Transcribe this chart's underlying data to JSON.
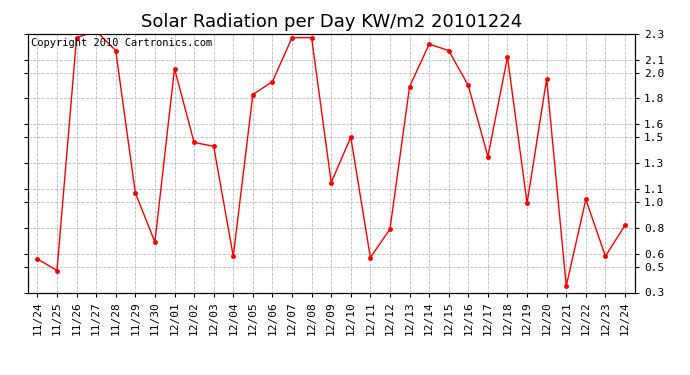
{
  "title": "Solar Radiation per Day KW/m2 20101224",
  "copyright_text": "Copyright 2010 Cartronics.com",
  "dates": [
    "11/24",
    "11/25",
    "11/26",
    "11/27",
    "11/28",
    "11/29",
    "11/30",
    "12/01",
    "12/02",
    "12/03",
    "12/04",
    "12/05",
    "12/06",
    "12/07",
    "12/08",
    "12/09",
    "12/10",
    "12/11",
    "12/12",
    "12/13",
    "12/14",
    "12/15",
    "12/16",
    "12/17",
    "12/18",
    "12/19",
    "12/20",
    "12/21",
    "12/22",
    "12/23",
    "12/24"
  ],
  "values": [
    0.56,
    0.47,
    2.27,
    2.32,
    2.17,
    1.07,
    0.69,
    2.03,
    1.46,
    1.43,
    0.58,
    1.83,
    1.93,
    2.27,
    2.27,
    1.15,
    1.5,
    0.57,
    0.79,
    1.89,
    2.22,
    2.17,
    1.9,
    1.35,
    2.12,
    0.99,
    1.95,
    0.35,
    1.02,
    0.58,
    0.82
  ],
  "line_color": "#ff0000",
  "marker": "o",
  "marker_size": 3,
  "ylim": [
    0.3,
    2.3
  ],
  "yticks_right": [
    2.3,
    2.1,
    2.0,
    1.8,
    1.6,
    1.5,
    1.3,
    1.1,
    1.0,
    0.8,
    0.6,
    0.5,
    0.3
  ],
  "ytick_labels_right": [
    "2.3",
    "2.1",
    "2.0",
    "1.8",
    "1.6",
    "1.5",
    "1.3",
    "1.1",
    "1.0",
    "0.8",
    "0.6",
    "0.5",
    "0.3"
  ],
  "bg_color": "#ffffff",
  "grid_color": "#bbbbbb",
  "title_fontsize": 13,
  "tick_fontsize": 8,
  "copyright_fontsize": 7.5
}
